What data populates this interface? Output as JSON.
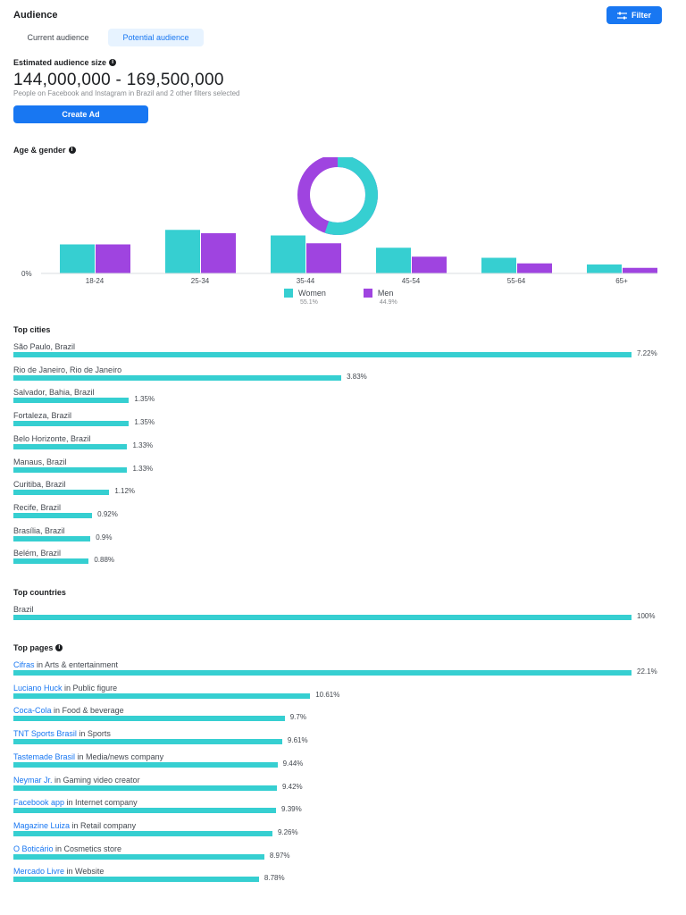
{
  "header": {
    "title": "Audience",
    "filter_label": "Filter"
  },
  "tabs": [
    {
      "label": "Current audience",
      "active": false
    },
    {
      "label": "Potential audience",
      "active": true
    }
  ],
  "estimate": {
    "title": "Estimated audience size",
    "range": "144,000,000 - 169,500,000",
    "subtitle": "People on Facebook and Instagram in Brazil and 2 other filters selected",
    "create_label": "Create Ad"
  },
  "age_gender": {
    "title": "Age & gender",
    "zero_label": "0%",
    "women_share": 0.551,
    "legend": [
      {
        "name": "Women",
        "pct": "55.1%",
        "color": "#36cfd1"
      },
      {
        "name": "Men",
        "pct": "44.9%",
        "color": "#9f44e0"
      }
    ],
    "chart_data": {
      "type": "bar",
      "categories": [
        "18-24",
        "25-34",
        "35-44",
        "45-54",
        "55-64",
        "65+"
      ],
      "series": [
        {
          "name": "Women",
          "values": [
            26,
            39,
            34,
            23,
            14,
            8
          ]
        },
        {
          "name": "Men",
          "values": [
            26,
            36,
            27,
            15,
            9,
            5
          ]
        }
      ],
      "ylim": [
        0,
        40
      ]
    }
  },
  "top_cities": {
    "title": "Top cities",
    "items": [
      {
        "label": "São Paulo, Brazil",
        "value": "7.22%",
        "pct": 7.22
      },
      {
        "label": "Rio de Janeiro, Rio de Janeiro",
        "value": "3.83%",
        "pct": 3.83
      },
      {
        "label": "Salvador, Bahia, Brazil",
        "value": "1.35%",
        "pct": 1.35
      },
      {
        "label": "Fortaleza, Brazil",
        "value": "1.35%",
        "pct": 1.35
      },
      {
        "label": "Belo Horizonte, Brazil",
        "value": "1.33%",
        "pct": 1.33
      },
      {
        "label": "Manaus, Brazil",
        "value": "1.33%",
        "pct": 1.33
      },
      {
        "label": "Curitiba, Brazil",
        "value": "1.12%",
        "pct": 1.12
      },
      {
        "label": "Recife, Brazil",
        "value": "0.92%",
        "pct": 0.92
      },
      {
        "label": "Brasília, Brazil",
        "value": "0.9%",
        "pct": 0.9
      },
      {
        "label": "Belém, Brazil",
        "value": "0.88%",
        "pct": 0.88
      }
    ]
  },
  "top_countries": {
    "title": "Top countries",
    "items": [
      {
        "label": "Brazil",
        "value": "100%",
        "pct": 100
      }
    ]
  },
  "top_pages": {
    "title": "Top pages",
    "items": [
      {
        "page": "Cifras",
        "category": " in Arts & entertainment",
        "value": "22.1%",
        "pct": 22.1
      },
      {
        "page": "Luciano Huck",
        "category": " in Public figure",
        "value": "10.61%",
        "pct": 10.61
      },
      {
        "page": "Coca-Cola",
        "category": " in Food & beverage",
        "value": "9.7%",
        "pct": 9.7
      },
      {
        "page": "TNT Sports Brasil",
        "category": " in Sports",
        "value": "9.61%",
        "pct": 9.61
      },
      {
        "page": "Tastemade Brasil",
        "category": " in Media/news company",
        "value": "9.44%",
        "pct": 9.44
      },
      {
        "page": "Neymar Jr.",
        "category": " in Gaming video creator",
        "value": "9.42%",
        "pct": 9.42
      },
      {
        "page": "Facebook app",
        "category": " in Internet company",
        "value": "9.39%",
        "pct": 9.39
      },
      {
        "page": "Magazine Luiza",
        "category": " in Retail company",
        "value": "9.26%",
        "pct": 9.26
      },
      {
        "page": "O Boticário",
        "category": " in Cosmetics store",
        "value": "8.97%",
        "pct": 8.97
      },
      {
        "page": "Mercado Livre",
        "category": " in Website",
        "value": "8.78%",
        "pct": 8.78
      }
    ]
  },
  "colors": {
    "accent": "#1877f2",
    "women": "#36cfd1",
    "men": "#9f44e0"
  }
}
